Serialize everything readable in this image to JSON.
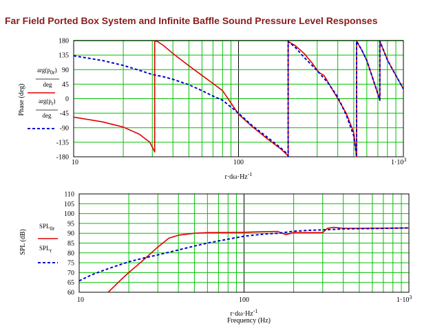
{
  "title": "Far Field Ported Box System and Infinite Baffle Sound Pressure Level Responses",
  "colors": {
    "grid": "#00c000",
    "red": "#e00000",
    "blue": "#0000cc",
    "title": "#8b1a1a"
  },
  "chart_data": [
    {
      "type": "line",
      "xscale": "log",
      "xlim": [
        10,
        1000
      ],
      "ylim": [
        -180,
        180
      ],
      "grid": true,
      "xticks": [
        "10",
        "100",
        "1·10"
      ],
      "xtick_exp": "3",
      "yticks": [
        "180",
        "135",
        "90",
        "45",
        "0",
        "-45",
        "-90",
        "-135",
        "-180"
      ],
      "ylabel": "Phase (deg)",
      "xlabel": {
        "base": "r·dω·Hz",
        "exp": "-1"
      },
      "legend": [
        {
          "line1": "arg(p",
          "sub1": "0r",
          "line1_end": ")",
          "line2": "deg",
          "style": "solid-red"
        },
        {
          "line1": "arg(p",
          "sub1": "r",
          "line1_end": ")",
          "line2": "deg",
          "style": "dashed-blue"
        }
      ],
      "series": [
        {
          "color": "red",
          "dash": false,
          "x": [
            10,
            15,
            20,
            25,
            29,
            31,
            31.01,
            32,
            35,
            40,
            50,
            60,
            70,
            80,
            100,
            120,
            150,
            180,
            198,
            200,
            200.01,
            220,
            250,
            280,
            300,
            310,
            330,
            400,
            450,
            500,
            520,
            520.01,
            560,
            600,
            700,
            720,
            720.01,
            800,
            850,
            1000
          ],
          "y": [
            -57,
            -72,
            -88,
            -110,
            -135,
            -165,
            178,
            178,
            165,
            140,
            102,
            72,
            47,
            25,
            -48,
            -85,
            -125,
            -155,
            -175,
            -178,
            177,
            165,
            140,
            110,
            88,
            80,
            72,
            0,
            -45,
            -105,
            -180,
            178,
            150,
            118,
            15,
            -5,
            178,
            120,
            95,
            30
          ]
        },
        {
          "color": "blue",
          "dash": true,
          "x": [
            10,
            15,
            20,
            25,
            30,
            35,
            40,
            50,
            60,
            70,
            80,
            100,
            120,
            150,
            180,
            198,
            200,
            200.01,
            220,
            250,
            300,
            350,
            400,
            450,
            500,
            520,
            520.01,
            560,
            600,
            700,
            720,
            720.01,
            800,
            850,
            1000
          ],
          "y": [
            133,
            118,
            103,
            88,
            75,
            68,
            60,
            43,
            25,
            8,
            -5,
            -45,
            -82,
            -120,
            -152,
            -172,
            -178,
            177,
            160,
            128,
            87,
            48,
            5,
            -50,
            -115,
            -180,
            178,
            150,
            118,
            15,
            -5,
            178,
            120,
            95,
            30
          ]
        }
      ]
    },
    {
      "type": "line",
      "xscale": "log",
      "xlim": [
        10,
        1000
      ],
      "ylim": [
        60,
        110
      ],
      "grid": true,
      "xticks": [
        "10",
        "100",
        "1·10"
      ],
      "xtick_exp": "3",
      "yticks": [
        "110",
        "105",
        "100",
        "95",
        "90",
        "85",
        "80",
        "75",
        "70",
        "65",
        "60"
      ],
      "ylabel": "SPL (dB)",
      "xlabel": {
        "base": "r·dω·Hz",
        "exp": "-1",
        "line2": "Frequency (Hz)"
      },
      "legend": [
        {
          "line1": "SPL",
          "sub1": "0r",
          "style": "solid-red"
        },
        {
          "line1": "SPL",
          "sub1": "r",
          "style": "dashed-blue"
        }
      ],
      "series": [
        {
          "color": "red",
          "dash": false,
          "x": [
            15,
            18,
            20,
            25,
            30,
            35,
            40,
            50,
            60,
            80,
            100,
            130,
            160,
            180,
            200,
            300,
            320,
            350,
            400,
            500,
            1000
          ],
          "y": [
            60,
            66.5,
            70,
            77,
            83,
            87.5,
            89,
            90,
            90.3,
            90.4,
            90.5,
            90.8,
            90.9,
            89.3,
            90.3,
            90.3,
            92.5,
            93,
            92.5,
            92.5,
            92.7
          ]
        },
        {
          "color": "blue",
          "dash": true,
          "x": [
            10,
            12,
            15,
            20,
            25,
            30,
            40,
            50,
            60,
            80,
            100,
            130,
            160,
            200,
            250,
            300,
            400,
            500,
            700,
            1000
          ],
          "y": [
            65.8,
            69,
            72,
            75.5,
            77.5,
            79,
            81.5,
            83.5,
            85,
            87,
            88.5,
            89.5,
            90,
            91,
            91.5,
            91.7,
            92.2,
            92.3,
            92.5,
            92.7
          ]
        }
      ]
    }
  ]
}
